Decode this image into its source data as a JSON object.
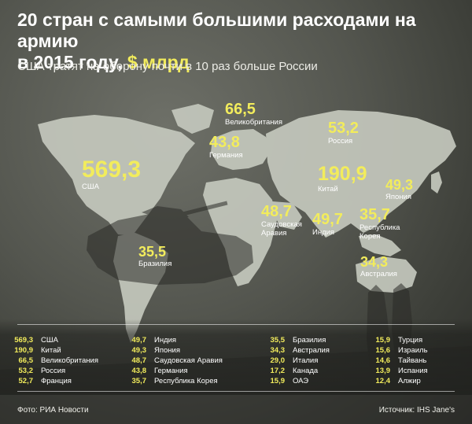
{
  "header": {
    "title_line1": "20 стран с самыми большими расходами на армию",
    "title_line2_prefix": "в 2015 году,",
    "title_line2_accent": "$ млрд",
    "subtitle": "США тратят на оборону почти в 10 раз больше России"
  },
  "colors": {
    "accent": "#f2ec5c",
    "land": "#c4c8bd",
    "background": "#55574f"
  },
  "chart_data": {
    "type": "table",
    "unit": "$ млрд",
    "rows": [
      {
        "country": "США",
        "value": 569.3,
        "label": "569,3"
      },
      {
        "country": "Китай",
        "value": 190.9,
        "label": "190,9"
      },
      {
        "country": "Великобритания",
        "value": 66.5,
        "label": "66,5"
      },
      {
        "country": "Россия",
        "value": 53.2,
        "label": "53,2"
      },
      {
        "country": "Франция",
        "value": 52.7,
        "label": "52,7"
      },
      {
        "country": "Индия",
        "value": 49.7,
        "label": "49,7"
      },
      {
        "country": "Япония",
        "value": 49.3,
        "label": "49,3"
      },
      {
        "country": "Саудовская Аравия",
        "value": 48.7,
        "label": "48,7"
      },
      {
        "country": "Германия",
        "value": 43.8,
        "label": "43,8"
      },
      {
        "country": "Республика Корея",
        "value": 35.7,
        "label": "35,7"
      },
      {
        "country": "Бразилия",
        "value": 35.5,
        "label": "35,5"
      },
      {
        "country": "Австралия",
        "value": 34.3,
        "label": "34,3"
      },
      {
        "country": "Италия",
        "value": 29.0,
        "label": "29,0"
      },
      {
        "country": "Канада",
        "value": 17.2,
        "label": "17,2"
      },
      {
        "country": "ОАЭ",
        "value": 15.9,
        "label": "15,9"
      },
      {
        "country": "Турция",
        "value": 15.9,
        "label": "15,9"
      },
      {
        "country": "Израиль",
        "value": 15.6,
        "label": "15,6"
      },
      {
        "country": "Тайвань",
        "value": 14.6,
        "label": "14,6"
      },
      {
        "country": "Испания",
        "value": 13.9,
        "label": "13,9"
      },
      {
        "country": "Алжир",
        "value": 12.4,
        "label": "12,4"
      }
    ],
    "map_labels": [
      {
        "value": "569,3",
        "name": "США"
      },
      {
        "value": "66,5",
        "name": "Великобритания"
      },
      {
        "value": "53,2",
        "name": "Россия"
      },
      {
        "value": "43,8",
        "name": "Германия"
      },
      {
        "value": "190,9",
        "name": "Китай"
      },
      {
        "value": "49,3",
        "name": "Япония"
      },
      {
        "value": "48,7",
        "name": "Саудовская Аравия",
        "name_line1": "Саудовская",
        "name_line2": "Аравия"
      },
      {
        "value": "49,7",
        "name": "Индия"
      },
      {
        "value": "35,7",
        "name": "Республика Корея",
        "name_line1": "Республика",
        "name_line2": "Корея"
      },
      {
        "value": "35,5",
        "name": "Бразилия"
      },
      {
        "value": "34,3",
        "name": "Австралия"
      }
    ]
  },
  "footer": {
    "photo_credit": "Фото: РИА Новости",
    "source": "Источник: IHS Jane's"
  }
}
